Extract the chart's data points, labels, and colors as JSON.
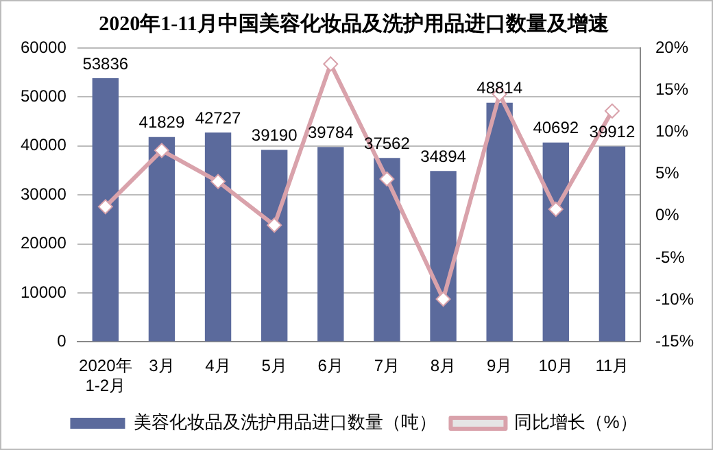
{
  "chart_data": {
    "type": "bar",
    "title": "2020年1-11月中国美容化妆品及洗护用品进口数量及增速",
    "categories": [
      "2020年\n1-2月",
      "3月",
      "4月",
      "5月",
      "6月",
      "7月",
      "8月",
      "9月",
      "10月",
      "11月"
    ],
    "series": [
      {
        "name": "美容化妆品及洗护用品进口数量（吨）",
        "color": "#5b6a9c",
        "values": [
          53836,
          41829,
          42727,
          39190,
          39784,
          37562,
          34894,
          48814,
          40692,
          39912
        ],
        "data_labels": true
      },
      {
        "name": "同比增长（%）",
        "type": "line",
        "axis": "y2",
        "color": "#d9a2ab",
        "marker": "diamond",
        "values": [
          1.1,
          7.8,
          4.1,
          -1.1,
          18.1,
          4.4,
          -9.9,
          14.5,
          0.8,
          12.5
        ]
      }
    ],
    "ylim": [
      0,
      60000
    ],
    "yticks": [
      0,
      10000,
      20000,
      30000,
      40000,
      50000,
      60000
    ],
    "y2lim": [
      -15,
      20
    ],
    "y2ticks": [
      {
        "value": -15,
        "label": "-15%"
      },
      {
        "value": -10,
        "label": "-10%"
      },
      {
        "value": -5,
        "label": "-5%"
      },
      {
        "value": 0,
        "label": "0%"
      },
      {
        "value": 5,
        "label": "5%"
      },
      {
        "value": 10,
        "label": "10%"
      },
      {
        "value": 15,
        "label": "15%"
      },
      {
        "value": 20,
        "label": "20%"
      }
    ],
    "grid": "y",
    "legend": "bottom"
  }
}
